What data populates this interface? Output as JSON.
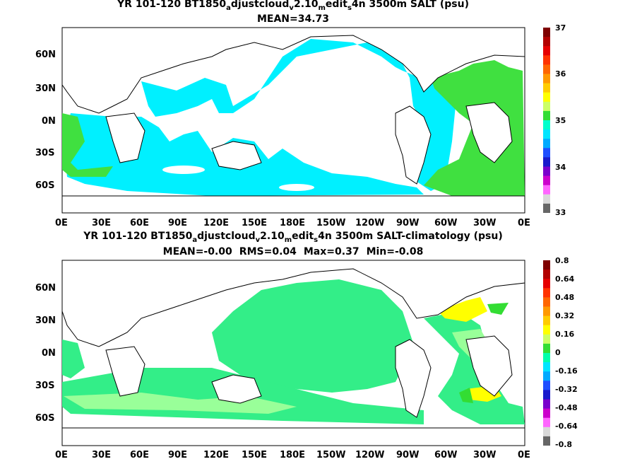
{
  "panels": [
    {
      "title_parts": [
        "YR 101-120 BT1850",
        "a",
        "djustcloud",
        "v",
        "2.10",
        "m",
        "edit",
        "s",
        "4n 3500m SALT (psu)"
      ],
      "stats": [
        "MEAN=34.73"
      ],
      "lat_labels": [
        "60N",
        "30N",
        "0N",
        "30S",
        "60S"
      ],
      "lon_labels": [
        "0E",
        "30E",
        "60E",
        "90E",
        "120E",
        "150E",
        "180E",
        "150W",
        "120W",
        "90W",
        "60W",
        "30W",
        "0E"
      ],
      "colorbar": {
        "labels": [
          "37",
          "36",
          "35",
          "34",
          "33"
        ],
        "colors": [
          "#7f0000",
          "#b30000",
          "#e60000",
          "#ff3300",
          "#ff6600",
          "#ff9900",
          "#ffcc00",
          "#ffff00",
          "#ccff66",
          "#33dd33",
          "#00ffcc",
          "#00e5ff",
          "#00aaff",
          "#1f4fff",
          "#1a1acc",
          "#7a00cc",
          "#cc00cc",
          "#ff66ff",
          "#d9d9d9",
          "#666666"
        ]
      },
      "fields": {
        "ocean": "#00f0ff",
        "light_green": "#40e040",
        "land": "#ffffff"
      }
    },
    {
      "title_parts": [
        "YR 101-120 BT1850",
        "a",
        "djustcloud",
        "v",
        "2.10",
        "m",
        "edit",
        "s",
        "4n 3500m SALT-climatology (psu)"
      ],
      "stats": [
        "MEAN=-0.00",
        "RMS=0.04",
        "Max=0.37",
        "Min=-0.08"
      ],
      "lat_labels": [
        "60N",
        "30N",
        "0N",
        "30S",
        "60S"
      ],
      "lon_labels": [
        "0E",
        "30E",
        "60E",
        "90E",
        "120E",
        "150E",
        "180E",
        "150W",
        "120W",
        "90W",
        "60W",
        "30W",
        "0E"
      ],
      "colorbar": {
        "labels": [
          "0.8",
          "0.64",
          "0.48",
          "0.32",
          "0.16",
          "0",
          "-0.16",
          "-0.32",
          "-0.48",
          "-0.64",
          "-0.8"
        ],
        "colors": [
          "#7f0000",
          "#b30000",
          "#e60000",
          "#ff3300",
          "#ff6600",
          "#ff9900",
          "#ffcc00",
          "#ffff00",
          "#ccff66",
          "#33dd33",
          "#00ffaa",
          "#00e5ff",
          "#00aaff",
          "#1f4fff",
          "#1a1acc",
          "#7a00cc",
          "#cc00cc",
          "#ff66ff",
          "#d9d9d9",
          "#666666"
        ]
      },
      "fields": {
        "ocean": "#33ee88",
        "light_green": "#99ff99",
        "yellow": "#ffff00",
        "green": "#33dd33",
        "land": "#ffffff"
      }
    }
  ]
}
